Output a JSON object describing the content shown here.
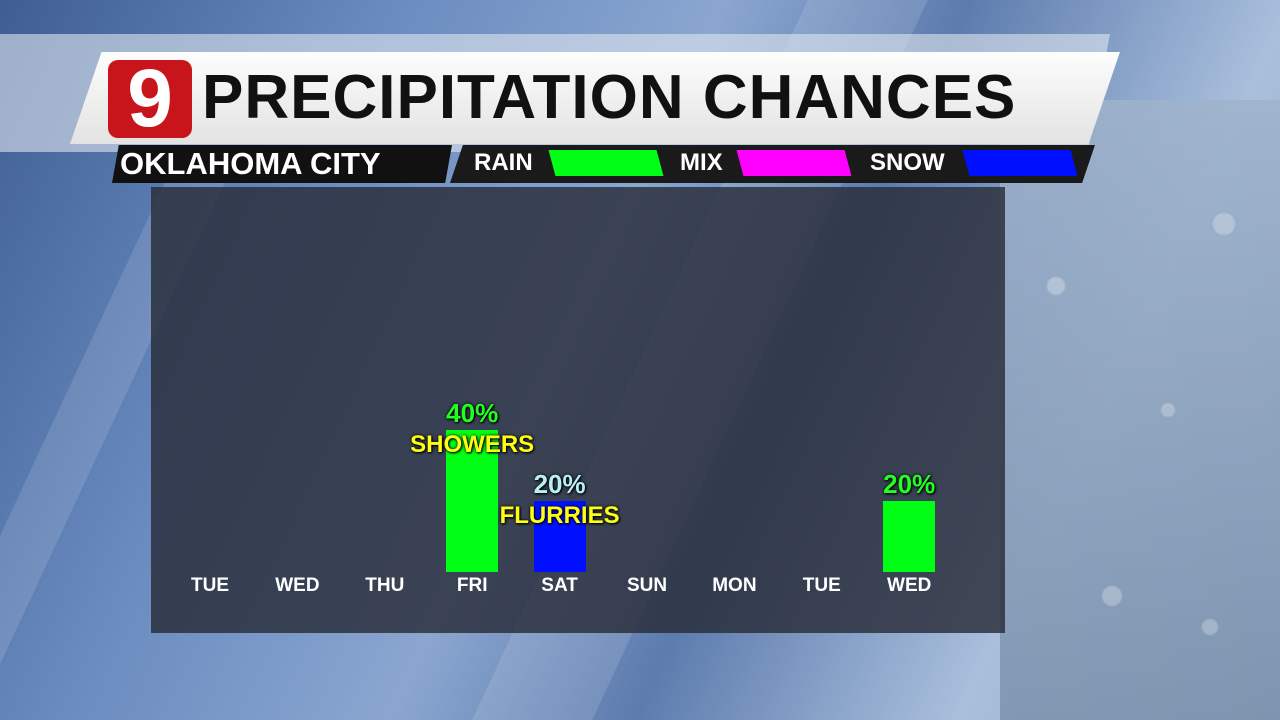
{
  "header": {
    "logo": "9",
    "title": "PRECIPITATION CHANCES",
    "location": "OKLAHOMA CITY"
  },
  "legend": [
    {
      "label": "RAIN",
      "color": "#00ff14"
    },
    {
      "label": "MIX",
      "color": "#ff00ff"
    },
    {
      "label": "SNOW",
      "color": "#0010ff"
    }
  ],
  "chart_data": {
    "type": "bar",
    "categories": [
      "TUE",
      "WED",
      "THU",
      "FRI",
      "SAT",
      "SUN",
      "MON",
      "TUE",
      "WED"
    ],
    "values": [
      0,
      0,
      0,
      40,
      20,
      0,
      0,
      0,
      20
    ],
    "types": [
      "",
      "",
      "",
      "RAIN",
      "SNOW",
      "",
      "",
      "",
      "RAIN"
    ],
    "value_labels": [
      "",
      "",
      "",
      "40%",
      "20%",
      "",
      "",
      "",
      "20%"
    ],
    "value_label_colors": [
      "",
      "",
      "",
      "#22ff22",
      "#b8f0f4",
      "",
      "",
      "",
      "#22ff22"
    ],
    "notes": [
      "",
      "",
      "",
      "SHOWERS",
      "FLURRIES",
      "",
      "",
      "",
      ""
    ],
    "ylim": [
      0,
      100
    ]
  }
}
